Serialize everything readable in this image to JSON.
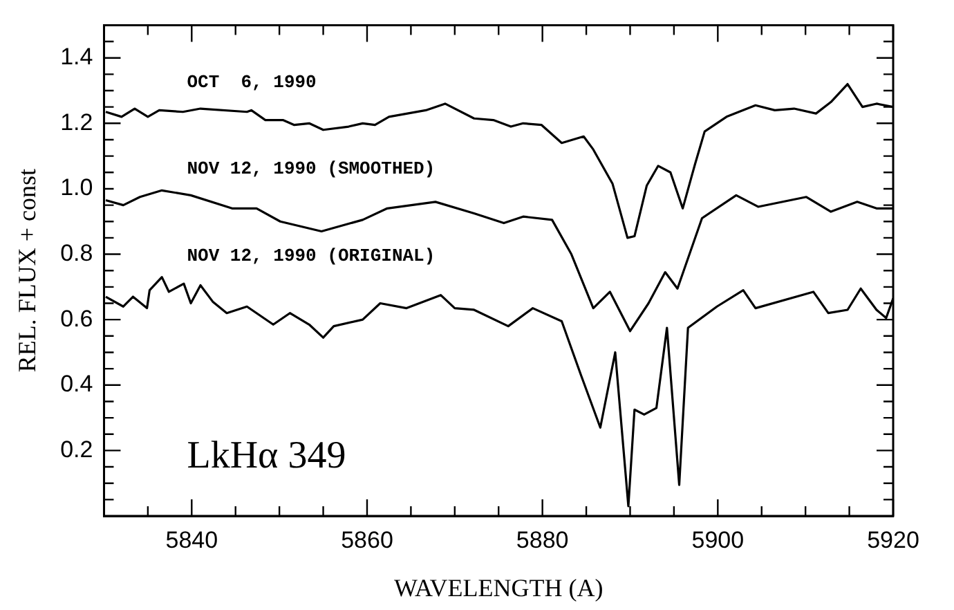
{
  "chart_data": {
    "type": "line",
    "xlabel": "WAVELENGTH (A)",
    "ylabel": "REL. FLUX + const",
    "xlim": [
      5830,
      5920
    ],
    "xticks": [
      {
        "value": 5835,
        "label": null
      },
      5840,
      {
        "value": 5845,
        "label": null
      },
      5860,
      {
        "value": 5850,
        "label": null
      },
      {
        "value": 5855,
        "label": null
      },
      {
        "value": 5865,
        "label": null
      },
      {
        "value": 5870,
        "label": null
      },
      {
        "value": 5875,
        "label": null
      },
      5880,
      {
        "value": 5885,
        "label": null
      },
      {
        "value": 5890,
        "label": null
      },
      {
        "value": 5895,
        "label": null
      },
      5900,
      {
        "value": 5905,
        "label": null
      },
      {
        "value": 5910,
        "label": null
      },
      {
        "value": 5915,
        "label": null
      },
      5920
    ],
    "ylim": [
      0,
      1.5
    ],
    "yticks": [
      {
        "value": 0.05,
        "label": null
      },
      {
        "value": 0.1,
        "label": null
      },
      {
        "value": 0.15,
        "label": null
      },
      0.2,
      {
        "value": 0.25,
        "label": null
      },
      {
        "value": 0.3,
        "label": null
      },
      {
        "value": 0.35,
        "label": null
      },
      0.4,
      {
        "value": 0.45,
        "label": null
      },
      {
        "value": 0.5,
        "label": null
      },
      {
        "value": 0.55,
        "label": null
      },
      0.6,
      {
        "value": 0.65,
        "label": null
      },
      {
        "value": 0.7,
        "label": null
      },
      {
        "value": 0.75,
        "label": null
      },
      0.8,
      {
        "value": 0.85,
        "label": null
      },
      {
        "value": 0.9,
        "label": null
      },
      {
        "value": 0.95,
        "label": null
      },
      {
        "value": 1.0,
        "label": "1.0"
      },
      {
        "value": 1.05,
        "label": null
      },
      {
        "value": 1.1,
        "label": null
      },
      {
        "value": 1.15,
        "label": null
      },
      1.2,
      {
        "value": 1.25,
        "label": null
      },
      {
        "value": 1.3,
        "label": null
      },
      {
        "value": 1.35,
        "label": null
      },
      1.4,
      {
        "value": 1.45,
        "label": null
      }
    ],
    "grid": false,
    "legend": false,
    "marker": "none",
    "line_style": "solid",
    "annotations": [
      "LkHα 349"
    ],
    "series": [
      {
        "name": "OCT  6, 1990",
        "color": "#000000",
        "x": [
          5830.2,
          5832,
          5833.5,
          5835,
          5836.3,
          5839,
          5841,
          5846.3,
          5846.8,
          5848.4,
          5850.4,
          5851.7,
          5853.4,
          5855,
          5857.9,
          5859.5,
          5860.9,
          5862.5,
          5866.7,
          5868.9,
          5872.2,
          5874.4,
          5876.4,
          5877.8,
          5879.9,
          5882.2,
          5884.7,
          5885.8,
          5888,
          5889.7,
          5890.5,
          5891.9,
          5893.2,
          5894.6,
          5896,
          5897.4,
          5898.5,
          5901,
          5904.3,
          5906.5,
          5908.7,
          5911.2,
          5912.9,
          5914.8,
          5916.5,
          5918.1,
          5920
        ],
        "values": [
          1.235,
          1.22,
          1.245,
          1.22,
          1.24,
          1.235,
          1.245,
          1.235,
          1.24,
          1.21,
          1.21,
          1.195,
          1.2,
          1.18,
          1.19,
          1.2,
          1.195,
          1.22,
          1.24,
          1.26,
          1.215,
          1.21,
          1.19,
          1.2,
          1.195,
          1.14,
          1.16,
          1.12,
          1.015,
          0.85,
          0.855,
          1.01,
          1.07,
          1.05,
          0.94,
          1.075,
          1.175,
          1.22,
          1.255,
          1.24,
          1.245,
          1.23,
          1.265,
          1.32,
          1.25,
          1.26,
          1.25
        ]
      },
      {
        "name": "NOV 12, 1990 (SMOOTHED)",
        "color": "#000000",
        "x": [
          5830.2,
          5832.2,
          5834.1,
          5836.6,
          5839.9,
          5844.6,
          5847.4,
          5850.1,
          5854.8,
          5859.5,
          5862.3,
          5867.8,
          5872.2,
          5875.6,
          5877.8,
          5881.1,
          5883.3,
          5885.8,
          5887.7,
          5890,
          5892.1,
          5894,
          5895.4,
          5898.2,
          5902.1,
          5904.6,
          5910.1,
          5912.9,
          5915.9,
          5918.1,
          5920
        ],
        "values": [
          0.965,
          0.95,
          0.975,
          0.995,
          0.98,
          0.94,
          0.94,
          0.9,
          0.87,
          0.905,
          0.94,
          0.96,
          0.925,
          0.895,
          0.915,
          0.905,
          0.8,
          0.635,
          0.685,
          0.565,
          0.65,
          0.745,
          0.695,
          0.91,
          0.98,
          0.945,
          0.975,
          0.93,
          0.96,
          0.94,
          0.94
        ]
      },
      {
        "name": "NOV 12, 1990 (ORIGINAL)",
        "color": "#000000",
        "x": [
          5830.2,
          5832.2,
          5833.3,
          5834.9,
          5835.2,
          5836.6,
          5837.4,
          5839.1,
          5839.9,
          5841,
          5842.4,
          5844,
          5846.3,
          5849.3,
          5851.2,
          5853.4,
          5855,
          5856.2,
          5859.5,
          5861.5,
          5864.5,
          5868.4,
          5870,
          5872.2,
          5876.1,
          5878.9,
          5882.2,
          5884.4,
          5886.6,
          5888.3,
          5889.8,
          5890.5,
          5891.6,
          5893,
          5894.2,
          5895.6,
          5896.6,
          5899.9,
          5902.9,
          5904.3,
          5910.9,
          5912.6,
          5914.8,
          5916.3,
          5918.1,
          5919.2,
          5920
        ],
        "values": [
          0.67,
          0.64,
          0.67,
          0.635,
          0.69,
          0.73,
          0.685,
          0.71,
          0.65,
          0.705,
          0.655,
          0.62,
          0.64,
          0.585,
          0.62,
          0.585,
          0.545,
          0.58,
          0.6,
          0.65,
          0.635,
          0.675,
          0.635,
          0.63,
          0.58,
          0.635,
          0.595,
          0.43,
          0.27,
          0.5,
          0.03,
          0.325,
          0.31,
          0.33,
          0.575,
          0.095,
          0.575,
          0.64,
          0.69,
          0.635,
          0.685,
          0.62,
          0.63,
          0.695,
          0.63,
          0.605,
          0.665
        ]
      }
    ]
  }
}
